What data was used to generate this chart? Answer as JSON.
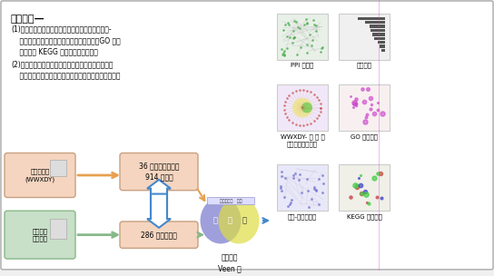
{
  "title": "文章特点—",
  "point1": "(1)构建五味消毒饮治疗关节假体周围感染的化合物-\n    靶点可视化网络并进行蛋白相互作用网络、GO 功能\n    富集以及 KEGG 信号通路富集分析；",
  "point2": "(2)初步预测了五味消毒饮治疗关节假体周围感染的分\n    子作用机制，为基础实验研究提供理论依据和新方向。",
  "box1_text": "五味消毒饮\n(WWXDY)",
  "box2_text": "36 种有效化合物及\n914 个靶点",
  "box3_text": "关节假体\n周围感染",
  "box4_text": "286 个疾病靶点",
  "venn_label": "交集靶点\nVeen 图",
  "label_ppi": "PPI 网络图",
  "label_core": "核心基因",
  "label_network": "WWXDY- 关 节 假\n体周围感染网络图",
  "label_go": "GO 富集分析",
  "label_pathway": "通路-靶点网络图",
  "label_kegg": "KEGG 富集分析",
  "bg_color": "#f5f5f5",
  "box1_bg": "#f5d5c0",
  "box2_bg": "#f5d5c0",
  "box3_bg": "#c8dfc8",
  "box4_bg": "#f5d5c0",
  "left_panel_bg": "#ffffff",
  "border_color": "#999999"
}
